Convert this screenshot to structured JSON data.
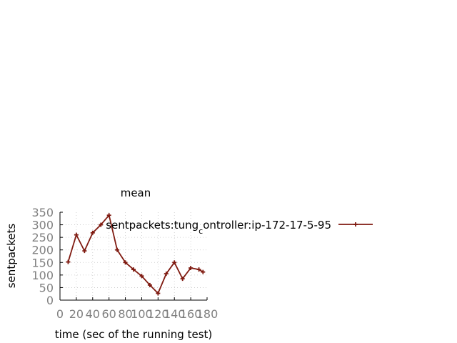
{
  "chart_data": {
    "type": "line",
    "title": "mean",
    "xlabel": "time (sec of the running test)",
    "ylabel": "sentpackets",
    "xlim": [
      0,
      180
    ],
    "ylim": [
      0,
      350
    ],
    "x_ticks": [
      0,
      20,
      40,
      60,
      80,
      100,
      120,
      140,
      160,
      180
    ],
    "y_ticks": [
      0,
      50,
      100,
      150,
      200,
      250,
      300,
      350
    ],
    "grid": true,
    "legend_position": "right",
    "series": [
      {
        "name": "sentpackets:tung_controller:ip-172-17-5-95",
        "legend_parts": {
          "before": "sentpackets:tung",
          "subscript": "c",
          "after": "ontroller:ip-172-17-5-95"
        },
        "color": "#7f1a10",
        "marker": "cross",
        "x": [
          10,
          20,
          30,
          40,
          50,
          60,
          70,
          80,
          90,
          100,
          110,
          120,
          130,
          140,
          150,
          160,
          170,
          175
        ],
        "y": [
          152,
          260,
          196,
          268,
          300,
          338,
          200,
          150,
          122,
          96,
          60,
          27,
          105,
          150,
          85,
          128,
          122,
          112
        ]
      }
    ]
  }
}
